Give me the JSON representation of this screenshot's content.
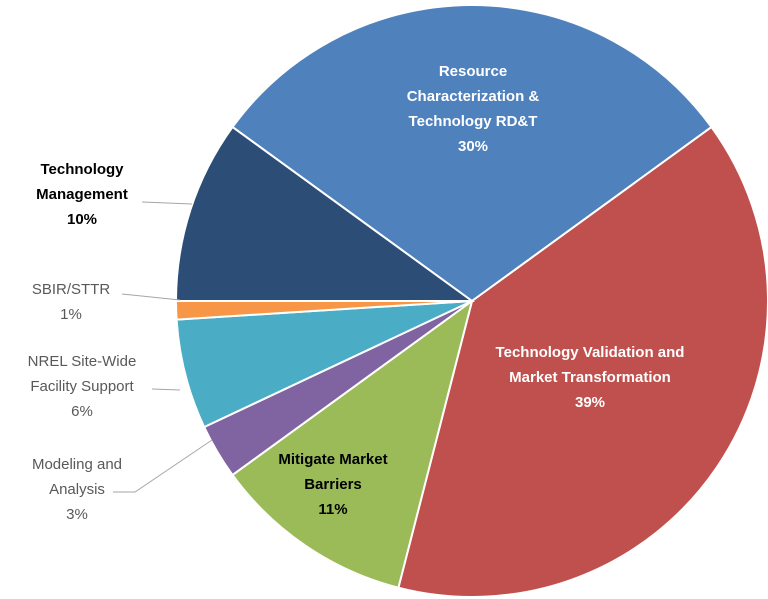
{
  "chart_data": {
    "type": "pie",
    "categories": [
      "Resource Characterization & Technology RD&T",
      "Technology Validation and Market Transformation",
      "Mitigate Market Barriers",
      "Modeling and Analysis",
      "NREL Site-Wide Facility Support",
      "SBIR/STTR",
      "Technology Management"
    ],
    "values": [
      30,
      39,
      11,
      3,
      6,
      1,
      10
    ],
    "value_labels": [
      "30%",
      "39%",
      "11%",
      "3%",
      "6%",
      "1%",
      "10%"
    ],
    "colors": [
      "#4f81bd",
      "#c0504d",
      "#9bbb59",
      "#8064a2",
      "#4bacc6",
      "#f79646",
      "#2c4d75"
    ]
  }
}
